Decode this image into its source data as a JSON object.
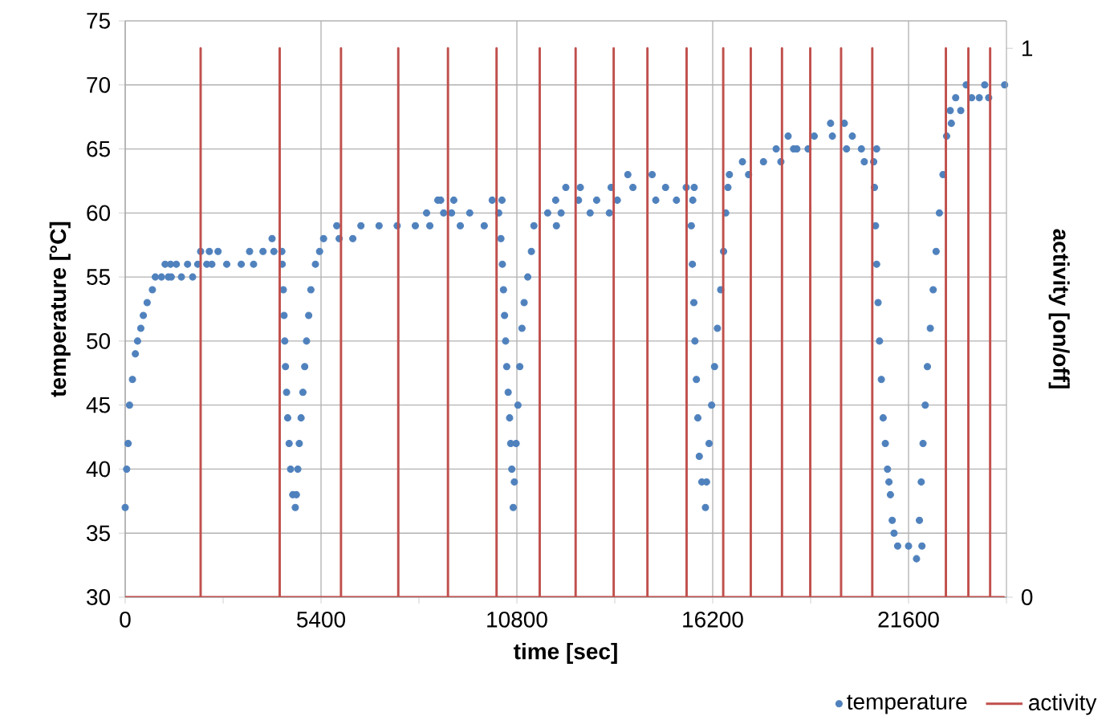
{
  "chart_data": {
    "type": "scatter",
    "xlabel": "time [sec]",
    "ylabel": "temperature [°C]",
    "y2label": "activity [on/off]",
    "xlim": [
      0,
      24300
    ],
    "ylim": [
      30,
      75
    ],
    "y2lim": [
      0,
      1.05
    ],
    "xticks": [
      0,
      {
        "value": 2700,
        "label": null
      },
      5400,
      {
        "value": 8100,
        "label": null
      },
      10800,
      {
        "value": 13500,
        "label": null
      },
      16200,
      {
        "value": 18900,
        "label": null
      },
      21600,
      {
        "value": 24300,
        "label": null
      }
    ],
    "yticks": [
      30,
      35,
      40,
      45,
      50,
      55,
      60,
      65,
      70,
      75
    ],
    "y2ticks": [
      0,
      1
    ],
    "grid": true,
    "legend": "bottom right",
    "series": [
      {
        "name": "temperature",
        "marker": "circle",
        "color": "#4f81bd",
        "x": [
          0,
          40,
          80,
          119,
          200,
          280,
          340,
          430,
          500,
          605,
          750,
          830,
          1000,
          1190,
          1100,
          1250,
          1410,
          1270,
          1550,
          1860,
          1720,
          2000,
          2250,
          2080,
          2320,
          2560,
          2390,
          2800,
          3200,
          3540,
          3430,
          3800,
          4100,
          4320,
          4050,
          4330,
          4360,
          4380,
          4400,
          4420,
          4450,
          4480,
          4520,
          4560,
          4620,
          4690,
          4720,
          4760,
          4800,
          4850,
          4900,
          4950,
          5000,
          5060,
          5120,
          5245,
          5360,
          5470,
          5900,
          6276,
          5834,
          6500,
          7000,
          7500,
          8000,
          8400,
          8310,
          8780,
          8700,
          8620,
          9060,
          9000,
          9500,
          10300,
          9240,
          9900,
          10120,
          10390,
          10360,
          10400,
          10430,
          10460,
          10490,
          10520,
          10560,
          10600,
          10630,
          10660,
          10700,
          10730,
          10780,
          10830,
          10880,
          10940,
          11000,
          11100,
          11200,
          11270,
          11890,
          11650,
          12020,
          11870,
          12500,
          13000,
          13570,
          12150,
          12550,
          12820,
          13350,
          13400,
          14000,
          14900,
          13860,
          14530,
          14630,
          15200,
          15650,
          15470,
          15690,
          15610,
          15640,
          15680,
          15710,
          15750,
          15790,
          15830,
          15900,
          16000,
          16030,
          16100,
          16170,
          16250,
          16330,
          16420,
          16500,
          16560,
          16620,
          16660,
          17190,
          17020,
          17600,
          18080,
          17950,
          18430,
          18520,
          18830,
          18280,
          19000,
          19500,
          20050,
          19450,
          19830,
          19890,
          20300,
          20720,
          20380,
          20640,
          20660,
          20690,
          20720,
          20760,
          20800,
          20850,
          20900,
          20960,
          21020,
          21060,
          21100,
          21150,
          21200,
          21300,
          21600,
          21970,
          21820,
          21900,
          21950,
          22000,
          22060,
          22120,
          22200,
          22280,
          22360,
          22450,
          22550,
          22650,
          22780,
          22750,
          23040,
          22900,
          23340,
          23550,
          23810,
          23190,
          23700,
          24250
        ],
        "values": [
          37,
          40,
          42,
          45,
          47,
          49,
          50,
          51,
          52,
          53,
          54,
          55,
          55,
          55,
          56,
          56,
          56,
          55,
          55,
          55,
          56,
          56,
          56,
          57,
          57,
          57,
          56,
          56,
          56,
          56,
          57,
          57,
          57,
          57,
          58,
          56,
          54,
          52,
          50,
          48,
          46,
          44,
          42,
          40,
          38,
          37,
          38,
          40,
          42,
          44,
          46,
          48,
          50,
          52,
          54,
          56,
          57,
          58,
          58,
          58,
          59,
          59,
          59,
          59,
          59,
          59,
          60,
          60,
          61,
          61,
          61,
          60,
          60,
          60,
          59,
          59,
          61,
          61,
          58,
          56,
          54,
          52,
          50,
          48,
          46,
          44,
          42,
          40,
          37,
          39,
          42,
          45,
          48,
          51,
          53,
          55,
          57,
          59,
          59,
          60,
          60,
          61,
          61,
          61,
          61,
          62,
          62,
          60,
          60,
          62,
          62,
          62,
          63,
          63,
          61,
          61,
          61,
          62,
          62,
          59,
          56,
          53,
          50,
          47,
          44,
          41,
          39,
          37,
          39,
          42,
          45,
          48,
          51,
          54,
          57,
          60,
          62,
          63,
          63,
          64,
          64,
          64,
          65,
          65,
          65,
          65,
          66,
          66,
          66,
          66,
          67,
          67,
          65,
          65,
          65,
          64,
          64,
          62,
          59,
          56,
          53,
          50,
          47,
          44,
          42,
          40,
          39,
          38,
          36,
          35,
          34,
          34,
          34,
          33,
          36,
          39,
          42,
          45,
          48,
          51,
          54,
          57,
          60,
          63,
          66,
          67,
          68,
          68,
          69,
          69,
          69,
          69,
          70,
          70,
          70
        ]
      },
      {
        "name": "activity",
        "type": "line",
        "marker": "none",
        "axis": "y2",
        "color": "#c0504d",
        "x": [
          0,
          2080,
          2080,
          2080,
          4260,
          4260,
          4260,
          5950,
          5950,
          5950,
          7530,
          7530,
          7530,
          8900,
          8900,
          8900,
          10240,
          10240,
          10240,
          11430,
          11430,
          11430,
          12420,
          12420,
          12420,
          13470,
          13470,
          13470,
          14400,
          14400,
          14400,
          15480,
          15480,
          15480,
          16490,
          16490,
          16490,
          17250,
          17250,
          17250,
          18110,
          18110,
          18110,
          18890,
          18890,
          18890,
          19740,
          19740,
          19740,
          20600,
          20600,
          20600,
          22630,
          22630,
          22630,
          23250,
          23250,
          23250,
          23850,
          23850,
          23850,
          24250
        ],
        "values": [
          0,
          0,
          1,
          0,
          0,
          1,
          0,
          0,
          1,
          0,
          0,
          1,
          0,
          0,
          1,
          0,
          0,
          1,
          0,
          0,
          1,
          0,
          0,
          1,
          0,
          0,
          1,
          0,
          0,
          1,
          0,
          0,
          1,
          0,
          0,
          1,
          0,
          0,
          1,
          0,
          0,
          1,
          0,
          0,
          1,
          0,
          0,
          1,
          0,
          0,
          1,
          0,
          0,
          1,
          0,
          0,
          1,
          0,
          0,
          1,
          0,
          0
        ]
      }
    ]
  }
}
